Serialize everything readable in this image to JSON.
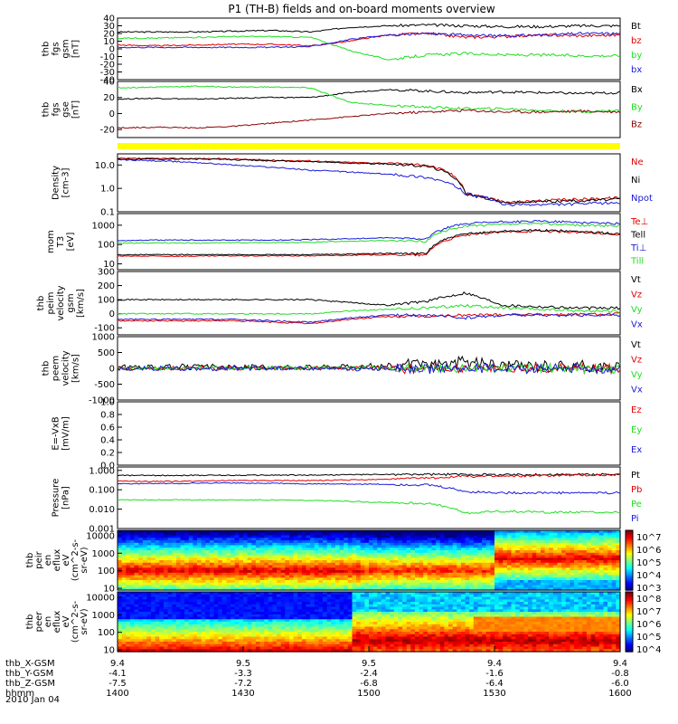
{
  "title": "P1 (TH-B) fields and on-board moments overview",
  "date": "2010 Jan 04",
  "colors": {
    "black": "#000000",
    "red": "#e00000",
    "green": "#22dd22",
    "blue": "#1a1ad8",
    "darkred": "#8b0000",
    "yellow": "#ffff00"
  },
  "chart_data": [
    {
      "id": "fgs-gsm",
      "type": "line",
      "ylabel": [
        "thb",
        "fgs",
        "gsm",
        "[nT]"
      ],
      "yticks": [
        "40",
        "30",
        "20",
        "10",
        "0",
        "-10",
        "-20",
        "-30",
        "-40"
      ],
      "ylim": [
        -40,
        40
      ],
      "series": [
        {
          "name": "Bt",
          "color": "black",
          "values": [
            22,
            22,
            22,
            23,
            24,
            22,
            28,
            30,
            31,
            30,
            29,
            29,
            30,
            30
          ]
        },
        {
          "name": "bz",
          "color": "red",
          "values": [
            5,
            4,
            5,
            6,
            6,
            4,
            10,
            18,
            20,
            15,
            16,
            18,
            17,
            18
          ]
        },
        {
          "name": "by",
          "color": "green",
          "values": [
            14,
            14,
            15,
            16,
            16,
            15,
            -2,
            -14,
            -8,
            -6,
            -8,
            -8,
            -9,
            -9
          ]
        },
        {
          "name": "bx",
          "color": "blue",
          "values": [
            2,
            2,
            2,
            2,
            2,
            3,
            12,
            18,
            20,
            18,
            17,
            18,
            20,
            20
          ]
        }
      ]
    },
    {
      "id": "fgs-gse",
      "type": "line",
      "ylabel": [
        "thb",
        "fgs",
        "gse",
        "[nT]"
      ],
      "yticks": [
        "40",
        "20",
        "0",
        "-20"
      ],
      "ylim": [
        -30,
        40
      ],
      "series": [
        {
          "name": "Bx",
          "color": "black",
          "values": [
            18,
            19,
            18,
            19,
            20,
            20,
            26,
            30,
            28,
            26,
            27,
            26,
            25,
            26
          ]
        },
        {
          "name": "By",
          "color": "green",
          "values": [
            32,
            33,
            34,
            33,
            33,
            32,
            14,
            10,
            8,
            6,
            6,
            4,
            2,
            4
          ]
        },
        {
          "name": "Bz",
          "color": "darkred",
          "values": [
            -18,
            -17,
            -18,
            -16,
            -12,
            -8,
            -4,
            0,
            2,
            4,
            2,
            2,
            3,
            2
          ]
        }
      ]
    },
    {
      "id": "density",
      "type": "line",
      "log": true,
      "ylabel": [
        "Density",
        "[cm-3]"
      ],
      "yticks": [
        "10.0",
        "1.0",
        "0.1"
      ],
      "ylim": [
        0.1,
        30
      ],
      "series": [
        {
          "name": "Ne",
          "color": "red",
          "values": [
            19,
            19,
            19,
            18,
            16,
            15,
            13,
            12,
            10,
            0.6,
            0.25,
            0.3,
            0.35,
            0.4
          ]
        },
        {
          "name": "Ni",
          "color": "black",
          "values": [
            18,
            18,
            18,
            17,
            15,
            14,
            12,
            11,
            9,
            0.55,
            0.24,
            0.28,
            0.3,
            0.35
          ]
        },
        {
          "name": "Npot",
          "color": "blue",
          "values": [
            17,
            15,
            13,
            10,
            8,
            6,
            5,
            4,
            3,
            0.6,
            0.2,
            0.2,
            0.22,
            0.25
          ]
        }
      ]
    },
    {
      "id": "temp",
      "type": "line",
      "log": true,
      "ylabel": [
        "mom",
        "T3",
        "[eV]"
      ],
      "yticks": [
        "1000",
        "100",
        "10"
      ],
      "ylim": [
        5,
        4000
      ],
      "series": [
        {
          "name": "Te⊥",
          "color": "red",
          "values": [
            25,
            25,
            25,
            26,
            26,
            26,
            28,
            30,
            28,
            300,
            450,
            500,
            420,
            300
          ]
        },
        {
          "name": "Tell",
          "color": "black",
          "values": [
            30,
            30,
            30,
            30,
            30,
            30,
            32,
            35,
            34,
            350,
            500,
            550,
            470,
            350
          ]
        },
        {
          "name": "Ti⊥",
          "color": "blue",
          "values": [
            160,
            170,
            170,
            170,
            170,
            180,
            200,
            220,
            200,
            1200,
            1500,
            1600,
            1400,
            1200
          ]
        },
        {
          "name": "Till",
          "color": "green",
          "values": [
            120,
            120,
            120,
            125,
            125,
            130,
            150,
            160,
            150,
            900,
            1100,
            1200,
            1000,
            900
          ]
        }
      ]
    },
    {
      "id": "peim-vel",
      "type": "line",
      "ylabel": [
        "thb",
        "peim",
        "velocity",
        "gsm",
        "[km/s]"
      ],
      "yticks": [
        "300",
        "200",
        "100",
        "0",
        "-100"
      ],
      "ylim": [
        -150,
        300
      ],
      "series": [
        {
          "name": "Vt",
          "color": "black",
          "values": [
            100,
            100,
            100,
            100,
            100,
            100,
            80,
            60,
            90,
            150,
            60,
            50,
            40,
            40
          ]
        },
        {
          "name": "Vz",
          "color": "red",
          "values": [
            -50,
            -50,
            -50,
            -50,
            -60,
            -70,
            -40,
            -20,
            -20,
            -10,
            -5,
            -5,
            -5,
            0
          ]
        },
        {
          "name": "Vy",
          "color": "green",
          "values": [
            0,
            0,
            0,
            0,
            0,
            0,
            20,
            30,
            40,
            60,
            40,
            30,
            20,
            20
          ]
        },
        {
          "name": "Vx",
          "color": "blue",
          "values": [
            -40,
            -40,
            -40,
            -40,
            -50,
            -60,
            -30,
            -10,
            -10,
            -30,
            -10,
            -10,
            -10,
            -10
          ]
        }
      ]
    },
    {
      "id": "peem-vel",
      "type": "line",
      "ylabel": [
        "thb",
        "peem",
        "velocity",
        "[km/s]"
      ],
      "yticks": [
        "1000",
        "500",
        "0",
        "-500",
        "-1000"
      ],
      "ylim": [
        -1000,
        1000
      ],
      "series": [
        {
          "name": "Vt",
          "color": "black",
          "values": [
            30,
            40,
            40,
            40,
            40,
            50,
            60,
            80,
            100,
            200,
            100,
            80,
            60,
            60
          ]
        },
        {
          "name": "Vz",
          "color": "red",
          "values": [
            0,
            0,
            0,
            0,
            0,
            0,
            0,
            0,
            0,
            0,
            0,
            0,
            0,
            0
          ]
        },
        {
          "name": "Vy",
          "color": "green",
          "values": [
            10,
            10,
            10,
            10,
            10,
            10,
            10,
            10,
            10,
            10,
            10,
            10,
            10,
            10
          ]
        },
        {
          "name": "Vx",
          "color": "blue",
          "values": [
            -10,
            -10,
            -10,
            -10,
            -10,
            -10,
            -10,
            -10,
            -10,
            -10,
            -10,
            -10,
            -10,
            -10
          ]
        }
      ]
    },
    {
      "id": "efield",
      "type": "line",
      "ylabel": [
        "E=-VxB",
        "[mV/m]"
      ],
      "yticks": [
        "1.0",
        "0.8",
        "0.6",
        "0.4",
        "0.2",
        "0.0"
      ],
      "ylim": [
        0,
        1
      ],
      "series": [
        {
          "name": "Ez",
          "color": "red",
          "values": []
        },
        {
          "name": "Ey",
          "color": "green",
          "values": []
        },
        {
          "name": "Ex",
          "color": "blue",
          "values": []
        }
      ]
    },
    {
      "id": "pressure",
      "type": "line",
      "log": true,
      "ylabel": [
        "Pressure",
        "[nPa]"
      ],
      "yticks": [
        "1.000",
        "0.100",
        "0.010",
        "0.001"
      ],
      "ylim": [
        0.001,
        1.5
      ],
      "series": [
        {
          "name": "Pt",
          "color": "black",
          "values": [
            0.55,
            0.55,
            0.56,
            0.56,
            0.57,
            0.57,
            0.6,
            0.62,
            0.62,
            0.62,
            0.6,
            0.6,
            0.62,
            0.62
          ]
        },
        {
          "name": "Pb",
          "color": "red",
          "values": [
            0.28,
            0.27,
            0.28,
            0.3,
            0.3,
            0.3,
            0.32,
            0.35,
            0.4,
            0.5,
            0.5,
            0.55,
            0.58,
            0.6
          ]
        },
        {
          "name": "Pe",
          "color": "green",
          "values": [
            0.03,
            0.03,
            0.03,
            0.03,
            0.03,
            0.028,
            0.025,
            0.022,
            0.02,
            0.006,
            0.008,
            0.007,
            0.007,
            0.007
          ]
        },
        {
          "name": "Pi",
          "color": "blue",
          "values": [
            0.2,
            0.21,
            0.22,
            0.22,
            0.22,
            0.2,
            0.2,
            0.19,
            0.18,
            0.08,
            0.07,
            0.07,
            0.07,
            0.07
          ]
        }
      ]
    },
    {
      "id": "peir-spec",
      "type": "heatmap",
      "ylabel": [
        "thb",
        "peir",
        "en",
        "eflux",
        "eV",
        "(cm^2-s-",
        "sr-eV)"
      ],
      "yticks": [
        "10000",
        "1000",
        "100",
        "10"
      ],
      "colorbar_ticks": [
        "10^7",
        "10^6",
        "10^5",
        "10^4",
        "10^3"
      ]
    },
    {
      "id": "peer-spec",
      "type": "heatmap",
      "ylabel": [
        "thb",
        "peer",
        "en",
        "eflux",
        "eV",
        "(cm^2-s-",
        "sr-eV)"
      ],
      "yticks": [
        "10000",
        "1000",
        "100",
        "10"
      ],
      "colorbar_ticks": [
        "10^8",
        "10^7",
        "10^6",
        "10^5",
        "10^4"
      ]
    }
  ],
  "x_axis": {
    "ticks_hhmm": [
      "1400",
      "1430",
      "1500",
      "1530",
      "1600"
    ],
    "rows": [
      {
        "label": "thb_X-GSM",
        "values": [
          "9.4",
          "9.5",
          "9.5",
          "9.4",
          "9.4"
        ]
      },
      {
        "label": "thb_Y-GSM",
        "values": [
          "-4.1",
          "-3.3",
          "-2.4",
          "-1.6",
          "-0.8"
        ]
      },
      {
        "label": "thb_Z-GSM",
        "values": [
          "-7.5",
          "-7.2",
          "-6.8",
          "-6.4",
          "-6.0"
        ]
      },
      {
        "label": "hhmm",
        "values": [
          "1400",
          "1430",
          "1500",
          "1530",
          "1600"
        ]
      }
    ]
  }
}
